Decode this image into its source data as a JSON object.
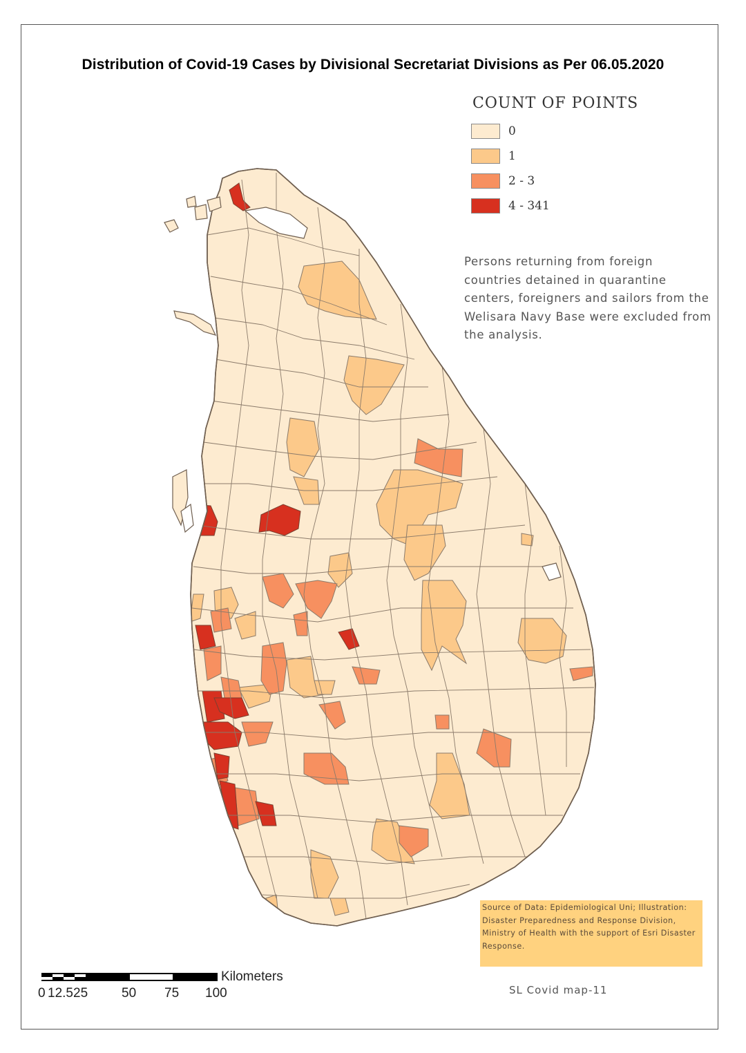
{
  "title": "Distribution of Covid-19 Cases by Divisional Secretariat Divisions as Per 06.05.2020",
  "legend": {
    "title": "COUNT OF POINTS",
    "items": [
      {
        "label": "0",
        "color": "#fdebd0"
      },
      {
        "label": "1",
        "color": "#fcc98a"
      },
      {
        "label": "2 - 3",
        "color": "#f79060"
      },
      {
        "label": "4 - 341",
        "color": "#d7301f"
      }
    ]
  },
  "note": "Persons returning from foreign countries detained in quarantine centers, foreigners and sailors from the Welisara Navy Base were excluded from the analysis.",
  "source": "Source of Data: Epidemiological Uni; Illustration: Disaster Preparedness and Response Division, Ministry of Health with the support of Esri Disaster Response.",
  "map_label": "SL Covid map-11",
  "scale": {
    "unit": "Kilometers",
    "ticks": [
      "0",
      "12.5",
      "25",
      "50",
      "75",
      "100"
    ]
  },
  "colors": {
    "border": "#8a7a6a",
    "frame": "#555555",
    "source_box": "#ffd27f"
  }
}
